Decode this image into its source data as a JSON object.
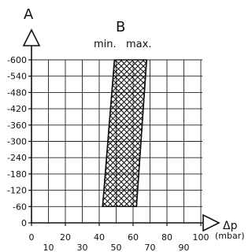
{
  "chart_data": {
    "type": "area",
    "title": "",
    "y_axis_letter": "A",
    "band_letter": "B",
    "band_min_label": "min.",
    "band_max_label": "max.",
    "x_axis_symbol": "Δp",
    "x_unit": "(mbar)",
    "xlim": [
      0,
      100
    ],
    "ylim": [
      0,
      600
    ],
    "x_tick_labels_upper": [
      "0",
      "20",
      "40",
      "60",
      "80",
      "100"
    ],
    "x_tick_labels_lower": [
      "10",
      "30",
      "50",
      "70",
      "90"
    ],
    "y_tick_labels": [
      "-600",
      "-540",
      "-480",
      "-420",
      "-360",
      "-300",
      "-240",
      "-180",
      "-120",
      "-60",
      "0"
    ],
    "grid": true,
    "band": {
      "min_edge": [
        {
          "x": 42,
          "y": 60
        },
        {
          "x": 49,
          "y": 600
        }
      ],
      "max_edge": [
        {
          "x": 62,
          "y": 60
        },
        {
          "x": 68,
          "y": 600
        }
      ],
      "fill": "crosshatch"
    }
  }
}
